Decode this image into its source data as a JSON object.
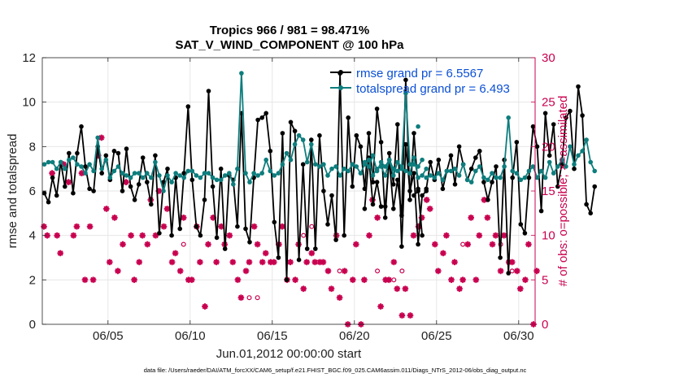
{
  "chart_data": {
    "type": "line",
    "title": "Tropics 966 / 981 = 98.471%",
    "subtitle": "SAT_V_WIND_COMPONENT @ 100 hPa",
    "xlabel": "Jun.01,2012 00:00:00 start",
    "ylabel": "rmse and totalspread",
    "y2label": "# of obs: o=possible; ×=assimilated",
    "xlim": [
      1.0,
      31.0
    ],
    "ylim": [
      0,
      12
    ],
    "y2lim": [
      0,
      30
    ],
    "x_ticks": [
      5,
      10,
      15,
      20,
      25,
      30
    ],
    "x_tick_labels": [
      "06/05",
      "06/10",
      "06/15",
      "06/20",
      "06/25",
      "06/30"
    ],
    "y_ticks": [
      0,
      2,
      4,
      6,
      8,
      10,
      12
    ],
    "y_tick_labels": [
      "0",
      "2",
      "4",
      "6",
      "8",
      "10",
      "12"
    ],
    "y2_ticks": [
      0,
      5,
      10,
      15,
      20,
      25,
      30
    ],
    "y2_tick_labels": [
      "0",
      "5",
      "10",
      "15",
      "20",
      "25",
      "30"
    ],
    "grid": true,
    "legend_position": "top-right",
    "legend": [
      "rmse grand pr = 6.5567",
      "totalspread grand pr = 6.493"
    ],
    "colors": {
      "rmse": "#000000",
      "spread": "#0e7d7d",
      "obs": "#c8004f",
      "legend_text": "#0a4fd6",
      "grid": "#e6e6e6"
    },
    "series": [
      {
        "name": "rmse",
        "segments": [
          {
            "x_start": 1.125,
            "dx": 0.25,
            "values": [
              5.9,
              5.5,
              6.6,
              5.8,
              7.3,
              6.2,
              7.7,
              5.9,
              7.7,
              8.9,
              7.1,
              6.1,
              6.0,
              8.0,
              6.8,
              7.6,
              6.5,
              7.8,
              7.7,
              6.0,
              7.9,
              6.2,
              5.6,
              6.3,
              7.5,
              6.4,
              5.4,
              7.6,
              4.1,
              6.4,
              7.0,
              4.0,
              6.6,
              4.3,
              6.8,
              9.8,
              6.5,
              4.4,
              4.0,
              5.6,
              10.5,
              6.2,
              3.9,
              7.0,
              3.4,
              6.7,
              6.5,
              4.4,
              9.5,
              4.3,
              3.7,
              6.6,
              9.2,
              9.3,
              9.5,
              7.8,
              4.6,
              3.0,
              8.6,
              2.0,
              9.1,
              8.7,
              2.9,
              7.2,
              3.4,
              8.3,
              3.4,
              8.5,
              6.0,
              4.5,
              5.8,
              3.8,
              11.3,
              4.0,
              9.3,
              6.2,
              8.5,
              8.0,
              6.1,
              8.6,
              6.4,
              9.7,
              8.2,
              4.8,
              7.7,
              6.3,
              9.0,
              3.5,
              8.1,
              6.0,
              6.8,
              3.6,
              5.8,
              6.0
            ]
          },
          {
            "x_start": 20.625,
            "dx": 0.25,
            "values": [
              5.2,
              7.5,
              5.4,
              6.4,
              5.3,
              5.3,
              7.4,
              5.2,
              6.5,
              4.9,
              11.0,
              5.6,
              8.6,
              6.1,
              4.0
            ]
          },
          {
            "x_start": 23.625,
            "dx": 0.25,
            "values": [
              5.8,
              6.0
            ]
          },
          {
            "x_start": 24.375,
            "dx": 0.25,
            "values": [
              6.1,
              7.3,
              6.5,
              7.4,
              6.1,
              6.9,
              7.6,
              6.3,
              8.0,
              7.2,
              6.5,
              7.0,
              7.5,
              7.8,
              6.4,
              5.6,
              6.4,
              7.1,
              3.0,
              7.4,
              2.3,
              6.6,
              8.2,
              4.5,
              4.1,
              6.6,
              8.9,
              8.0,
              5.1,
              9.5,
              7.6,
              9.0,
              6.2,
              7.2,
              9.3,
              9.6,
              7.0,
              10.7,
              9.4,
              5.4,
              5.0,
              6.2
            ]
          }
        ]
      },
      {
        "name": "totalspread",
        "segments": [
          {
            "x_start": 1.125,
            "dx": 0.25,
            "values": [
              7.2,
              7.3,
              7.3,
              7.0,
              7.3,
              7.0,
              7.4,
              7.5,
              7.2,
              7.1,
              6.8,
              7.2,
              6.9,
              8.4,
              7.0,
              7.4,
              6.6,
              6.9,
              7.1,
              6.8,
              6.7,
              6.6,
              6.8,
              6.8,
              6.6,
              6.8,
              6.6,
              7.3,
              6.7,
              6.0,
              6.7,
              6.4,
              6.8,
              6.7,
              6.6,
              6.9,
              6.9,
              6.7,
              6.6,
              6.8,
              6.8,
              6.6,
              6.5,
              6.5,
              6.7,
              6.8,
              6.3,
              7.0,
              11.3,
              6.8,
              6.4,
              6.8,
              6.7,
              6.8,
              7.4,
              6.9,
              6.7,
              6.8,
              7.2,
              7.7,
              7.4,
              8.1,
              8.5,
              8.3,
              7.3,
              8.1,
              7.2,
              7.1,
              7.2,
              6.7,
              7.0,
              7.1,
              6.7,
              7.0,
              6.9,
              7.2,
              7.1,
              6.8,
              7.2,
              7.4,
              6.7,
              7.0,
              7.1,
              6.7,
              7.4,
              7.0,
              6.9,
              7.0,
              6.9,
              6.8,
              7.5,
              6.6,
              6.7,
              7.0
            ]
          },
          {
            "x_start": 20.625,
            "dx": 0.25,
            "values": [
              7.3,
              7.1,
              7.6,
              6.9,
              7.3,
              7.1,
              7.4,
              6.7,
              7.3,
              7.1,
              10.4,
              7.2,
              7.2,
              7.1,
              7.4
            ]
          },
          {
            "x_start": 23.875,
            "dx": 0.25,
            "values": [
              8.9
            ]
          },
          {
            "x_start": 24.375,
            "dx": 0.25,
            "values": [
              6.6,
              6.7,
              6.6,
              6.8,
              6.5,
              6.9,
              6.9,
              7.0,
              6.7,
              7.2,
              6.5,
              6.4,
              6.9,
              7.1,
              6.6,
              6.5,
              6.8,
              6.6,
              6.6,
              7.1,
              9.3,
              6.9,
              6.8,
              6.5,
              6.6,
              6.9,
              7.1,
              6.6,
              6.9,
              6.6,
              7.3,
              6.8,
              7.1,
              7.4,
              7.1,
              8.0,
              7.2,
              7.6,
              7.8,
              8.3,
              7.3,
              6.9
            ]
          }
        ]
      },
      {
        "name": "obs_assimilated",
        "marker": "star",
        "points": [
          [
            1.1,
            11
          ],
          [
            1.3,
            10
          ],
          [
            1.6,
            17
          ],
          [
            1.9,
            10
          ],
          [
            2.1,
            8
          ],
          [
            2.3,
            18
          ],
          [
            2.6,
            16
          ],
          [
            2.9,
            10
          ],
          [
            3.1,
            11
          ],
          [
            3.4,
            17
          ],
          [
            3.6,
            5
          ],
          [
            3.9,
            11
          ],
          [
            4.1,
            5
          ],
          [
            4.4,
            19
          ],
          [
            4.6,
            21
          ],
          [
            4.9,
            13
          ],
          [
            5.1,
            7
          ],
          [
            5.4,
            12
          ],
          [
            5.6,
            6
          ],
          [
            5.9,
            9
          ],
          [
            6.1,
            16
          ],
          [
            6.4,
            10
          ],
          [
            6.6,
            5
          ],
          [
            6.9,
            7
          ],
          [
            7.1,
            10
          ],
          [
            7.4,
            9
          ],
          [
            7.6,
            14
          ],
          [
            7.9,
            10
          ],
          [
            8.1,
            15
          ],
          [
            8.4,
            11
          ],
          [
            8.6,
            13
          ],
          [
            8.9,
            7
          ],
          [
            9.1,
            8
          ],
          [
            9.4,
            6
          ],
          [
            9.6,
            12
          ],
          [
            9.9,
            5
          ],
          [
            10.1,
            5
          ],
          [
            10.4,
            11
          ],
          [
            10.6,
            7
          ],
          [
            10.9,
            2
          ],
          [
            11.1,
            9
          ],
          [
            11.4,
            12
          ],
          [
            11.6,
            7
          ],
          [
            11.9,
            11
          ],
          [
            12.1,
            9
          ],
          [
            12.4,
            10
          ],
          [
            12.6,
            7
          ],
          [
            12.9,
            5
          ],
          [
            13.1,
            3
          ],
          [
            13.4,
            6
          ],
          [
            13.6,
            7
          ],
          [
            13.9,
            11
          ],
          [
            14.1,
            9
          ],
          [
            14.4,
            7
          ],
          [
            14.6,
            8
          ],
          [
            14.9,
            7
          ],
          [
            15.1,
            7
          ],
          [
            15.4,
            9
          ],
          [
            15.6,
            11
          ],
          [
            15.9,
            5
          ],
          [
            16.1,
            7
          ],
          [
            16.4,
            5
          ],
          [
            16.6,
            9
          ],
          [
            16.9,
            4
          ],
          [
            17.1,
            7
          ],
          [
            17.4,
            8
          ],
          [
            17.6,
            7
          ],
          [
            17.9,
            7
          ],
          [
            18.1,
            7
          ],
          [
            18.4,
            6
          ],
          [
            18.6,
            4
          ],
          [
            18.9,
            10
          ],
          [
            19.1,
            3
          ],
          [
            19.4,
            6
          ],
          [
            19.6,
            0
          ],
          [
            19.9,
            5
          ],
          [
            20.1,
            9
          ],
          [
            20.4,
            0
          ],
          [
            20.6,
            5
          ],
          [
            20.9,
            10
          ],
          [
            21.1,
            14
          ],
          [
            21.4,
            12
          ],
          [
            21.6,
            2
          ],
          [
            21.9,
            5
          ],
          [
            22.1,
            5
          ],
          [
            22.4,
            7
          ],
          [
            22.6,
            4
          ],
          [
            22.9,
            1
          ],
          [
            23.1,
            4
          ],
          [
            23.4,
            1
          ],
          [
            23.6,
            10
          ],
          [
            23.9,
            11
          ],
          [
            24.1,
            12
          ],
          [
            24.4,
            14
          ],
          [
            24.6,
            13
          ],
          [
            24.9,
            9
          ],
          [
            25.1,
            6
          ],
          [
            25.4,
            8
          ],
          [
            25.6,
            10
          ],
          [
            25.9,
            5
          ],
          [
            26.1,
            7
          ],
          [
            26.4,
            4
          ],
          [
            26.6,
            5
          ],
          [
            26.9,
            9
          ],
          [
            27.1,
            12
          ],
          [
            27.4,
            5
          ],
          [
            27.6,
            10
          ],
          [
            27.9,
            14
          ],
          [
            28.1,
            12
          ],
          [
            28.4,
            9
          ],
          [
            28.6,
            10
          ],
          [
            28.9,
            6
          ],
          [
            29.1,
            10
          ],
          [
            29.4,
            7
          ],
          [
            29.6,
            7
          ],
          [
            29.9,
            6
          ],
          [
            30.1,
            4
          ],
          [
            30.4,
            5
          ],
          [
            30.6,
            9
          ],
          [
            30.9,
            0
          ],
          [
            31.1,
            6
          ]
        ]
      },
      {
        "name": "obs_possible",
        "marker": "circle",
        "points": [
          [
            9.6,
            9
          ],
          [
            13.6,
            3
          ],
          [
            14.1,
            3
          ],
          [
            16.9,
            10
          ],
          [
            17.4,
            11
          ],
          [
            18.4,
            6
          ],
          [
            19.1,
            6
          ],
          [
            21.4,
            6
          ],
          [
            22.4,
            5
          ],
          [
            22.9,
            6
          ],
          [
            26.6,
            9
          ],
          [
            28.9,
            9
          ],
          [
            29.6,
            6
          ]
        ]
      }
    ]
  },
  "footer": {
    "data_file": "data file: /Users/raeder/DAI/ATM_forcXX/CAM6_setup/f.e21.FHIST_BGC.f09_025.CAM6assim.011/Diags_NTrS_2012-06/obs_diag_output.nc"
  }
}
